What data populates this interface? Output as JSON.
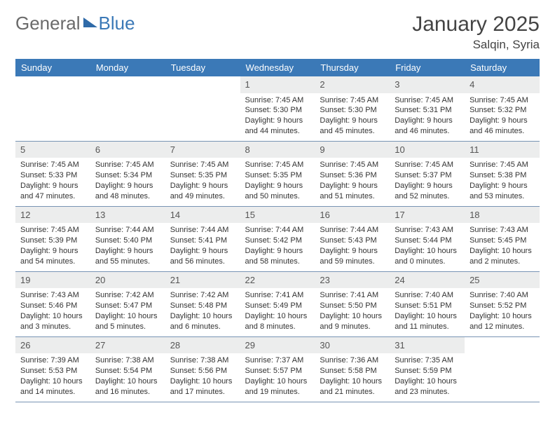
{
  "logo": {
    "part1": "General",
    "part2": "Blue"
  },
  "title": "January 2025",
  "location": "Salqin, Syria",
  "colors": {
    "header_bg": "#3b79b7",
    "header_text": "#ffffff",
    "daynum_bg": "#eceded",
    "border": "#7894b4",
    "logo_gray": "#6a6a6a",
    "logo_blue": "#3b79b7"
  },
  "weekdays": [
    "Sunday",
    "Monday",
    "Tuesday",
    "Wednesday",
    "Thursday",
    "Friday",
    "Saturday"
  ],
  "weeks": [
    [
      {
        "empty": true
      },
      {
        "empty": true
      },
      {
        "empty": true
      },
      {
        "day": "1",
        "sunrise": "Sunrise: 7:45 AM",
        "sunset": "Sunset: 5:30 PM",
        "d1": "Daylight: 9 hours",
        "d2": "and 44 minutes."
      },
      {
        "day": "2",
        "sunrise": "Sunrise: 7:45 AM",
        "sunset": "Sunset: 5:30 PM",
        "d1": "Daylight: 9 hours",
        "d2": "and 45 minutes."
      },
      {
        "day": "3",
        "sunrise": "Sunrise: 7:45 AM",
        "sunset": "Sunset: 5:31 PM",
        "d1": "Daylight: 9 hours",
        "d2": "and 46 minutes."
      },
      {
        "day": "4",
        "sunrise": "Sunrise: 7:45 AM",
        "sunset": "Sunset: 5:32 PM",
        "d1": "Daylight: 9 hours",
        "d2": "and 46 minutes."
      }
    ],
    [
      {
        "day": "5",
        "sunrise": "Sunrise: 7:45 AM",
        "sunset": "Sunset: 5:33 PM",
        "d1": "Daylight: 9 hours",
        "d2": "and 47 minutes."
      },
      {
        "day": "6",
        "sunrise": "Sunrise: 7:45 AM",
        "sunset": "Sunset: 5:34 PM",
        "d1": "Daylight: 9 hours",
        "d2": "and 48 minutes."
      },
      {
        "day": "7",
        "sunrise": "Sunrise: 7:45 AM",
        "sunset": "Sunset: 5:35 PM",
        "d1": "Daylight: 9 hours",
        "d2": "and 49 minutes."
      },
      {
        "day": "8",
        "sunrise": "Sunrise: 7:45 AM",
        "sunset": "Sunset: 5:35 PM",
        "d1": "Daylight: 9 hours",
        "d2": "and 50 minutes."
      },
      {
        "day": "9",
        "sunrise": "Sunrise: 7:45 AM",
        "sunset": "Sunset: 5:36 PM",
        "d1": "Daylight: 9 hours",
        "d2": "and 51 minutes."
      },
      {
        "day": "10",
        "sunrise": "Sunrise: 7:45 AM",
        "sunset": "Sunset: 5:37 PM",
        "d1": "Daylight: 9 hours",
        "d2": "and 52 minutes."
      },
      {
        "day": "11",
        "sunrise": "Sunrise: 7:45 AM",
        "sunset": "Sunset: 5:38 PM",
        "d1": "Daylight: 9 hours",
        "d2": "and 53 minutes."
      }
    ],
    [
      {
        "day": "12",
        "sunrise": "Sunrise: 7:45 AM",
        "sunset": "Sunset: 5:39 PM",
        "d1": "Daylight: 9 hours",
        "d2": "and 54 minutes."
      },
      {
        "day": "13",
        "sunrise": "Sunrise: 7:44 AM",
        "sunset": "Sunset: 5:40 PM",
        "d1": "Daylight: 9 hours",
        "d2": "and 55 minutes."
      },
      {
        "day": "14",
        "sunrise": "Sunrise: 7:44 AM",
        "sunset": "Sunset: 5:41 PM",
        "d1": "Daylight: 9 hours",
        "d2": "and 56 minutes."
      },
      {
        "day": "15",
        "sunrise": "Sunrise: 7:44 AM",
        "sunset": "Sunset: 5:42 PM",
        "d1": "Daylight: 9 hours",
        "d2": "and 58 minutes."
      },
      {
        "day": "16",
        "sunrise": "Sunrise: 7:44 AM",
        "sunset": "Sunset: 5:43 PM",
        "d1": "Daylight: 9 hours",
        "d2": "and 59 minutes."
      },
      {
        "day": "17",
        "sunrise": "Sunrise: 7:43 AM",
        "sunset": "Sunset: 5:44 PM",
        "d1": "Daylight: 10 hours",
        "d2": "and 0 minutes."
      },
      {
        "day": "18",
        "sunrise": "Sunrise: 7:43 AM",
        "sunset": "Sunset: 5:45 PM",
        "d1": "Daylight: 10 hours",
        "d2": "and 2 minutes."
      }
    ],
    [
      {
        "day": "19",
        "sunrise": "Sunrise: 7:43 AM",
        "sunset": "Sunset: 5:46 PM",
        "d1": "Daylight: 10 hours",
        "d2": "and 3 minutes."
      },
      {
        "day": "20",
        "sunrise": "Sunrise: 7:42 AM",
        "sunset": "Sunset: 5:47 PM",
        "d1": "Daylight: 10 hours",
        "d2": "and 5 minutes."
      },
      {
        "day": "21",
        "sunrise": "Sunrise: 7:42 AM",
        "sunset": "Sunset: 5:48 PM",
        "d1": "Daylight: 10 hours",
        "d2": "and 6 minutes."
      },
      {
        "day": "22",
        "sunrise": "Sunrise: 7:41 AM",
        "sunset": "Sunset: 5:49 PM",
        "d1": "Daylight: 10 hours",
        "d2": "and 8 minutes."
      },
      {
        "day": "23",
        "sunrise": "Sunrise: 7:41 AM",
        "sunset": "Sunset: 5:50 PM",
        "d1": "Daylight: 10 hours",
        "d2": "and 9 minutes."
      },
      {
        "day": "24",
        "sunrise": "Sunrise: 7:40 AM",
        "sunset": "Sunset: 5:51 PM",
        "d1": "Daylight: 10 hours",
        "d2": "and 11 minutes."
      },
      {
        "day": "25",
        "sunrise": "Sunrise: 7:40 AM",
        "sunset": "Sunset: 5:52 PM",
        "d1": "Daylight: 10 hours",
        "d2": "and 12 minutes."
      }
    ],
    [
      {
        "day": "26",
        "sunrise": "Sunrise: 7:39 AM",
        "sunset": "Sunset: 5:53 PM",
        "d1": "Daylight: 10 hours",
        "d2": "and 14 minutes."
      },
      {
        "day": "27",
        "sunrise": "Sunrise: 7:38 AM",
        "sunset": "Sunset: 5:54 PM",
        "d1": "Daylight: 10 hours",
        "d2": "and 16 minutes."
      },
      {
        "day": "28",
        "sunrise": "Sunrise: 7:38 AM",
        "sunset": "Sunset: 5:56 PM",
        "d1": "Daylight: 10 hours",
        "d2": "and 17 minutes."
      },
      {
        "day": "29",
        "sunrise": "Sunrise: 7:37 AM",
        "sunset": "Sunset: 5:57 PM",
        "d1": "Daylight: 10 hours",
        "d2": "and 19 minutes."
      },
      {
        "day": "30",
        "sunrise": "Sunrise: 7:36 AM",
        "sunset": "Sunset: 5:58 PM",
        "d1": "Daylight: 10 hours",
        "d2": "and 21 minutes."
      },
      {
        "day": "31",
        "sunrise": "Sunrise: 7:35 AM",
        "sunset": "Sunset: 5:59 PM",
        "d1": "Daylight: 10 hours",
        "d2": "and 23 minutes."
      },
      {
        "empty": true
      }
    ]
  ]
}
